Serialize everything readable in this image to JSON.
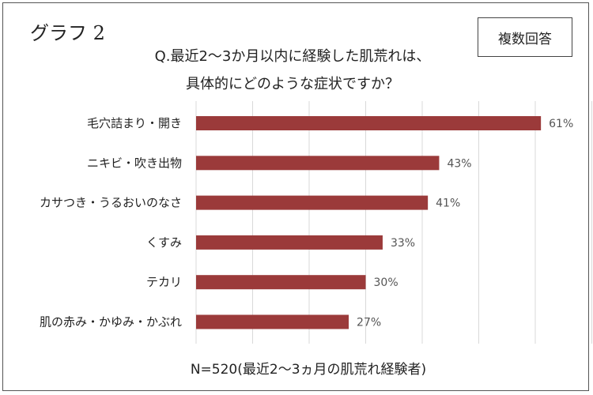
{
  "graph_label": "グラフ 2",
  "badge": "複数回答",
  "footer": "N=520(最近2～3ヵ月の肌荒れ経験者)",
  "chart_data": {
    "type": "bar",
    "orientation": "horizontal",
    "title_lines": [
      "Q.最近2～3か月以内に経験した肌荒れは、",
      "具体的にどのような症状ですか？"
    ],
    "categories": [
      "毛穴詰まり・開き",
      "ニキビ・吹き出物",
      "カサつき・うるおいのなさ",
      "くすみ",
      "テカリ",
      "肌の赤み・かゆみ・かぶれ"
    ],
    "values": [
      61,
      43,
      41,
      33,
      30,
      27
    ],
    "value_labels": [
      "61%",
      "43%",
      "41%",
      "33%",
      "30%",
      "27%"
    ],
    "xlim": [
      0,
      70
    ],
    "grid": true,
    "colors": {
      "bar": "#9b3a3a",
      "grid": "#d9d9d9"
    }
  }
}
